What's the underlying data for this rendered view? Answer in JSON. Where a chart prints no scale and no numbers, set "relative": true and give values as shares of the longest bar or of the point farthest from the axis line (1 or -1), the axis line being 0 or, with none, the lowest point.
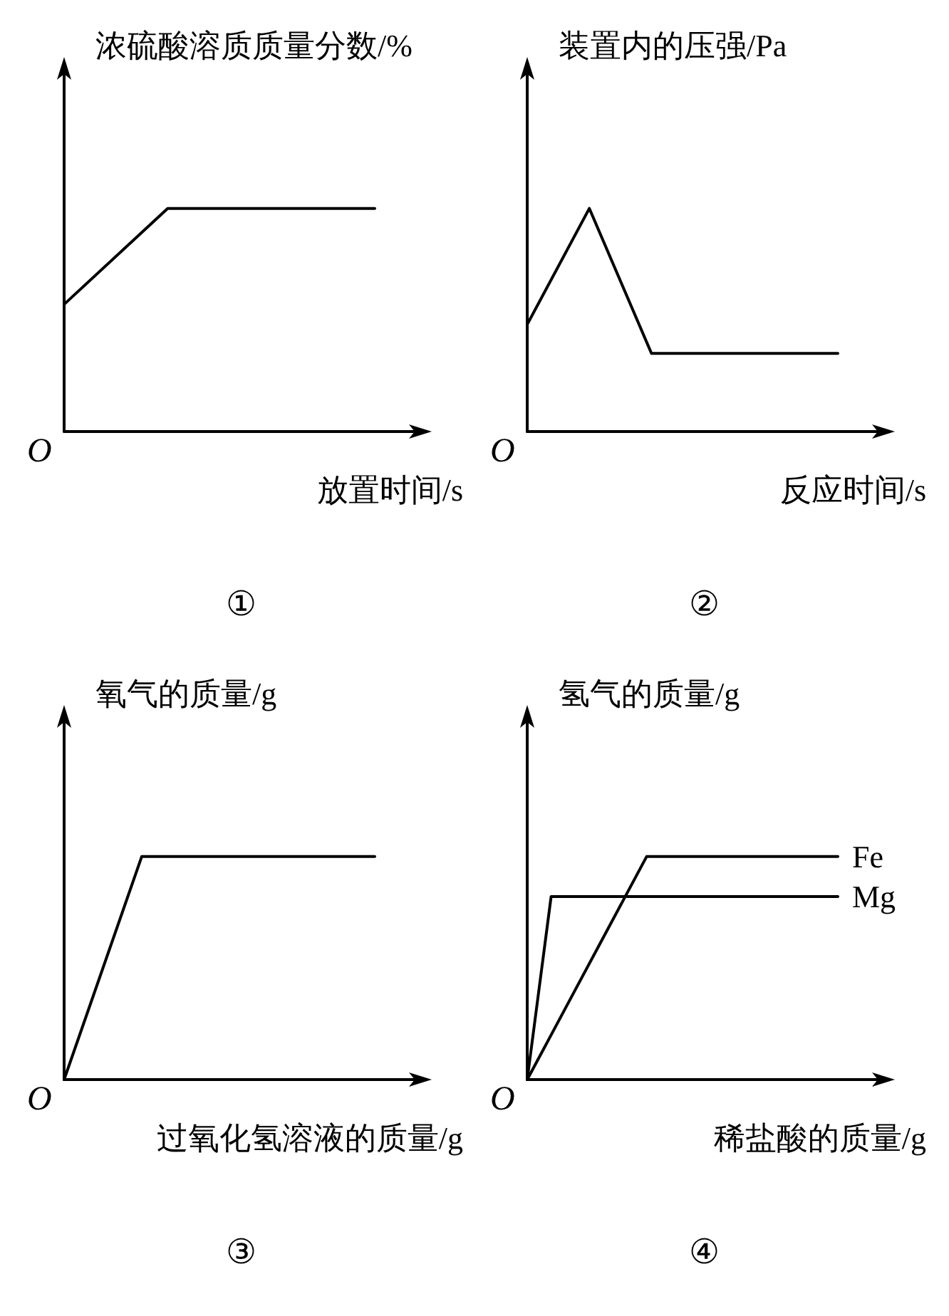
{
  "chart_data": [
    {
      "type": "line",
      "relative": true,
      "ylabel": "浓硫酸溶质质量分数/%",
      "xlabel": "放置时间/s",
      "annotations": [
        "O",
        "①"
      ],
      "categories": [
        null,
        null,
        null,
        null
      ],
      "series": [
        {
          "color": "#000000",
          "values": [
            0.57,
            1,
            1,
            1
          ]
        }
      ]
    },
    {
      "type": "line",
      "relative": true,
      "ylabel": "装置内的压强/Pa",
      "xlabel": "反应时间/s",
      "annotations": [
        "O",
        "②"
      ],
      "categories": [
        null,
        null,
        null,
        null,
        null,
        null
      ],
      "series": [
        {
          "color": "#000000",
          "values": [
            0.48,
            1,
            0.35,
            0.35,
            0.35,
            0.35
          ]
        }
      ]
    },
    {
      "type": "line",
      "relative": true,
      "ylabel": "氧气的质量/g",
      "xlabel": "过氧化氢溶液的质量/g",
      "annotations": [
        "O",
        "③"
      ],
      "categories": [
        null,
        null,
        null,
        null,
        null
      ],
      "series": [
        {
          "color": "#000000",
          "values": [
            0,
            1,
            1,
            1,
            1
          ]
        }
      ]
    },
    {
      "type": "line",
      "relative": true,
      "ylabel": "氢气的质量/g",
      "xlabel": "稀盐酸的质量/g",
      "annotations": [
        "O",
        "④"
      ],
      "categories": [
        null,
        null,
        null,
        null,
        null,
        null,
        null,
        null,
        null,
        null,
        null,
        null,
        null,
        null
      ],
      "series": [
        {
          "name": "Fe",
          "color": "#000000",
          "values": [
            0,
            0.2,
            0.4,
            0.6,
            0.8,
            1,
            1,
            1,
            1,
            1,
            1,
            1,
            1,
            1
          ]
        },
        {
          "name": "Mg",
          "color": "#000000",
          "values": [
            0,
            0.82,
            0.82,
            0.82,
            0.82,
            0.82,
            0.82,
            0.82,
            0.82,
            0.82,
            0.82,
            0.82,
            0.82,
            0.82
          ]
        }
      ]
    }
  ]
}
